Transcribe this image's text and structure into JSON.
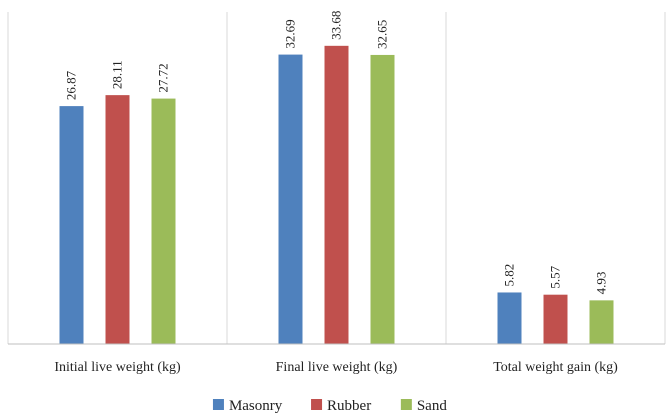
{
  "chart_data": {
    "type": "bar",
    "categories": [
      "Initial live weight (kg)",
      "Final live weight (kg)",
      "Total weight gain (kg)"
    ],
    "series": [
      {
        "name": "Masonry",
        "values": [
          26.87,
          32.69,
          5.82
        ],
        "color": "#4f81bd"
      },
      {
        "name": "Rubber",
        "values": [
          28.11,
          33.68,
          5.57
        ],
        "color": "#c0504d"
      },
      {
        "name": "Sand",
        "values": [
          27.72,
          32.65,
          4.93
        ],
        "color": "#9bbb59"
      }
    ],
    "title": "",
    "xlabel": "",
    "ylabel": "",
    "ylim": [
      0,
      37.5
    ],
    "grid": false,
    "legend_position": "bottom",
    "separator_color": "#d9d9d9",
    "axis_color": "#bfbfbf"
  }
}
